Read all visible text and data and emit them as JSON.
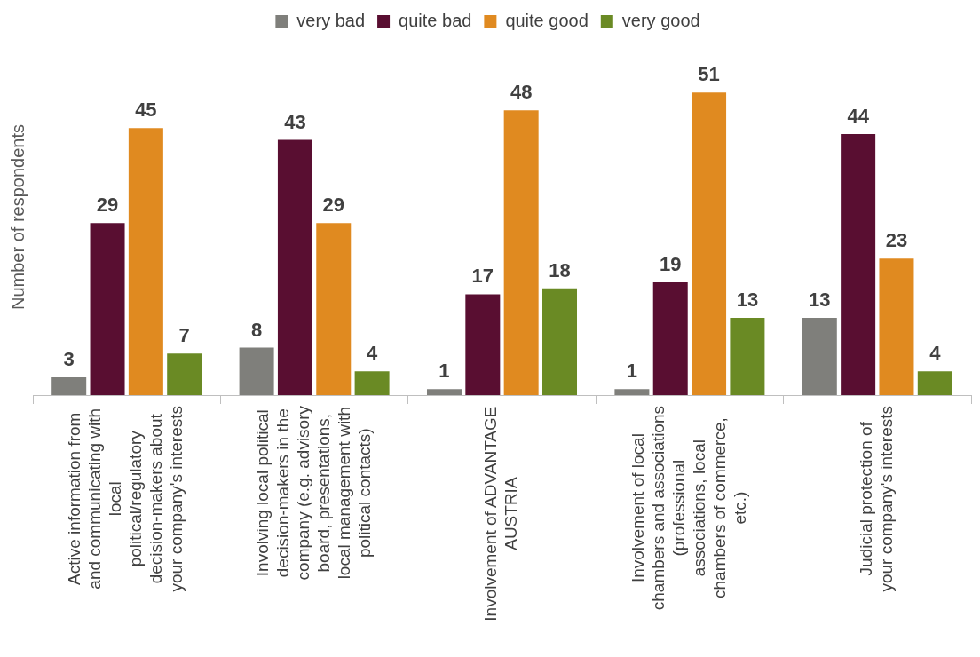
{
  "chart_data": {
    "type": "bar",
    "ylabel": "Number of respondents",
    "categories": [
      "Active information from and communicating with local political/regulatory decision-makers about your company's interests",
      "Involving local political decision-makers in the company (e.g. advisory board, presentations, local management with political contacts)",
      "Involvement of ADVANTAGE AUSTRIA",
      "Involvement of local chambers and associations (professional associations, local chambers of commerce, etc.)",
      "Judicial protection of your company's interests"
    ],
    "series": [
      {
        "name": "very bad",
        "color": "#7f7f7b",
        "values": [
          3,
          8,
          1,
          1,
          13
        ]
      },
      {
        "name": "quite bad",
        "color": "#590e31",
        "values": [
          29,
          43,
          17,
          19,
          44
        ]
      },
      {
        "name": "quite good",
        "color": "#e08a20",
        "values": [
          45,
          29,
          48,
          51,
          23
        ]
      },
      {
        "name": "very good",
        "color": "#6a8a24",
        "values": [
          7,
          4,
          18,
          13,
          4
        ]
      }
    ],
    "data_labels": true,
    "legend": "top",
    "grid": false,
    "tick_labels": "x"
  }
}
